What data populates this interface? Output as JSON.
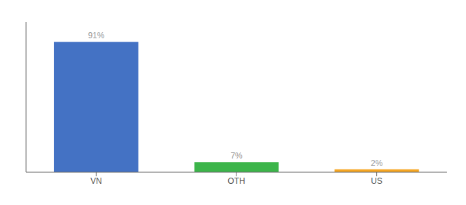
{
  "chart_data": {
    "type": "bar",
    "categories": [
      "VN",
      "OTH",
      "US"
    ],
    "values": [
      91,
      7,
      2
    ],
    "value_labels": [
      "91%",
      "7%",
      "2%"
    ],
    "data_labels": true,
    "colors": [
      "#4472C4",
      "#3CB54A",
      "#F5A623"
    ],
    "ylim": [
      0,
      105
    ],
    "tick_labels": "x",
    "grid": false
  }
}
